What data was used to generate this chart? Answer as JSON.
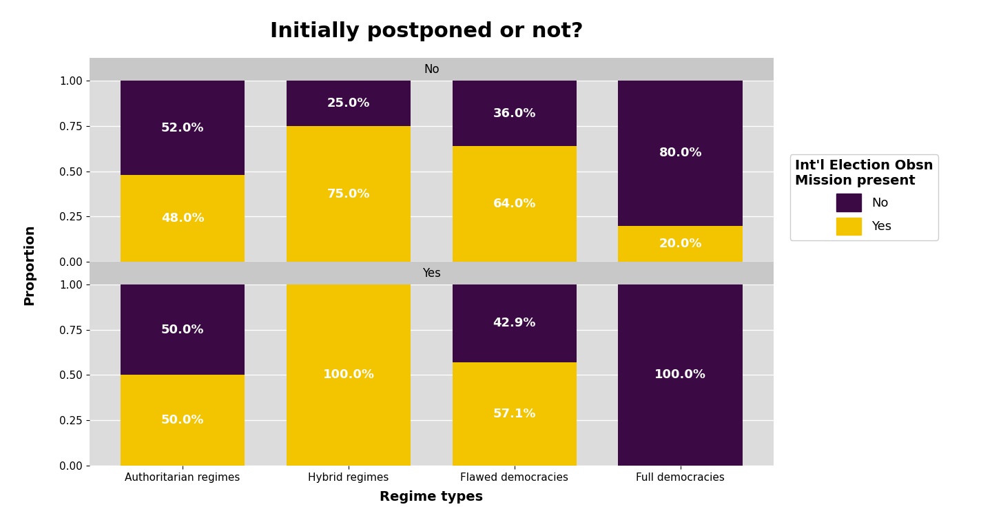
{
  "title": "Initially postponed or not?",
  "xlabel": "Regime types",
  "ylabel": "Proportion",
  "facets": [
    "No",
    "Yes"
  ],
  "categories": [
    "Authoritarian regimes",
    "Hybrid regimes",
    "Flawed democracies",
    "Full democracies"
  ],
  "data": {
    "No": {
      "yes_vals": [
        0.48,
        0.75,
        0.64,
        0.2
      ],
      "no_vals": [
        0.52,
        0.25,
        0.36,
        0.8
      ],
      "yes_labels": [
        "48.0%",
        "75.0%",
        "64.0%",
        "20.0%"
      ],
      "no_labels": [
        "52.0%",
        "25.0%",
        "36.0%",
        "80.0%"
      ]
    },
    "Yes": {
      "yes_vals": [
        0.5,
        1.0,
        0.571,
        0.0
      ],
      "no_vals": [
        0.5,
        0.0,
        0.429,
        1.0
      ],
      "yes_labels": [
        "50.0%",
        "100.0%",
        "57.1%",
        ""
      ],
      "no_labels": [
        "50.0%",
        "",
        "42.9%",
        "100.0%"
      ]
    }
  },
  "color_no": "#3B0A45",
  "color_yes": "#F2C500",
  "legend_title_line1": "Int'l Election Obsn",
  "legend_title_line2": "Mission present",
  "legend_labels": [
    "No",
    "Yes"
  ],
  "panel_bg": "#DCDCDC",
  "strip_bg": "#C8C8C8",
  "figure_bg": "#FFFFFF",
  "bar_width": 0.75,
  "title_fontsize": 22,
  "axis_label_fontsize": 14,
  "tick_fontsize": 11,
  "bar_label_fontsize": 13,
  "facet_label_fontsize": 12,
  "legend_fontsize": 13,
  "legend_title_fontsize": 14
}
